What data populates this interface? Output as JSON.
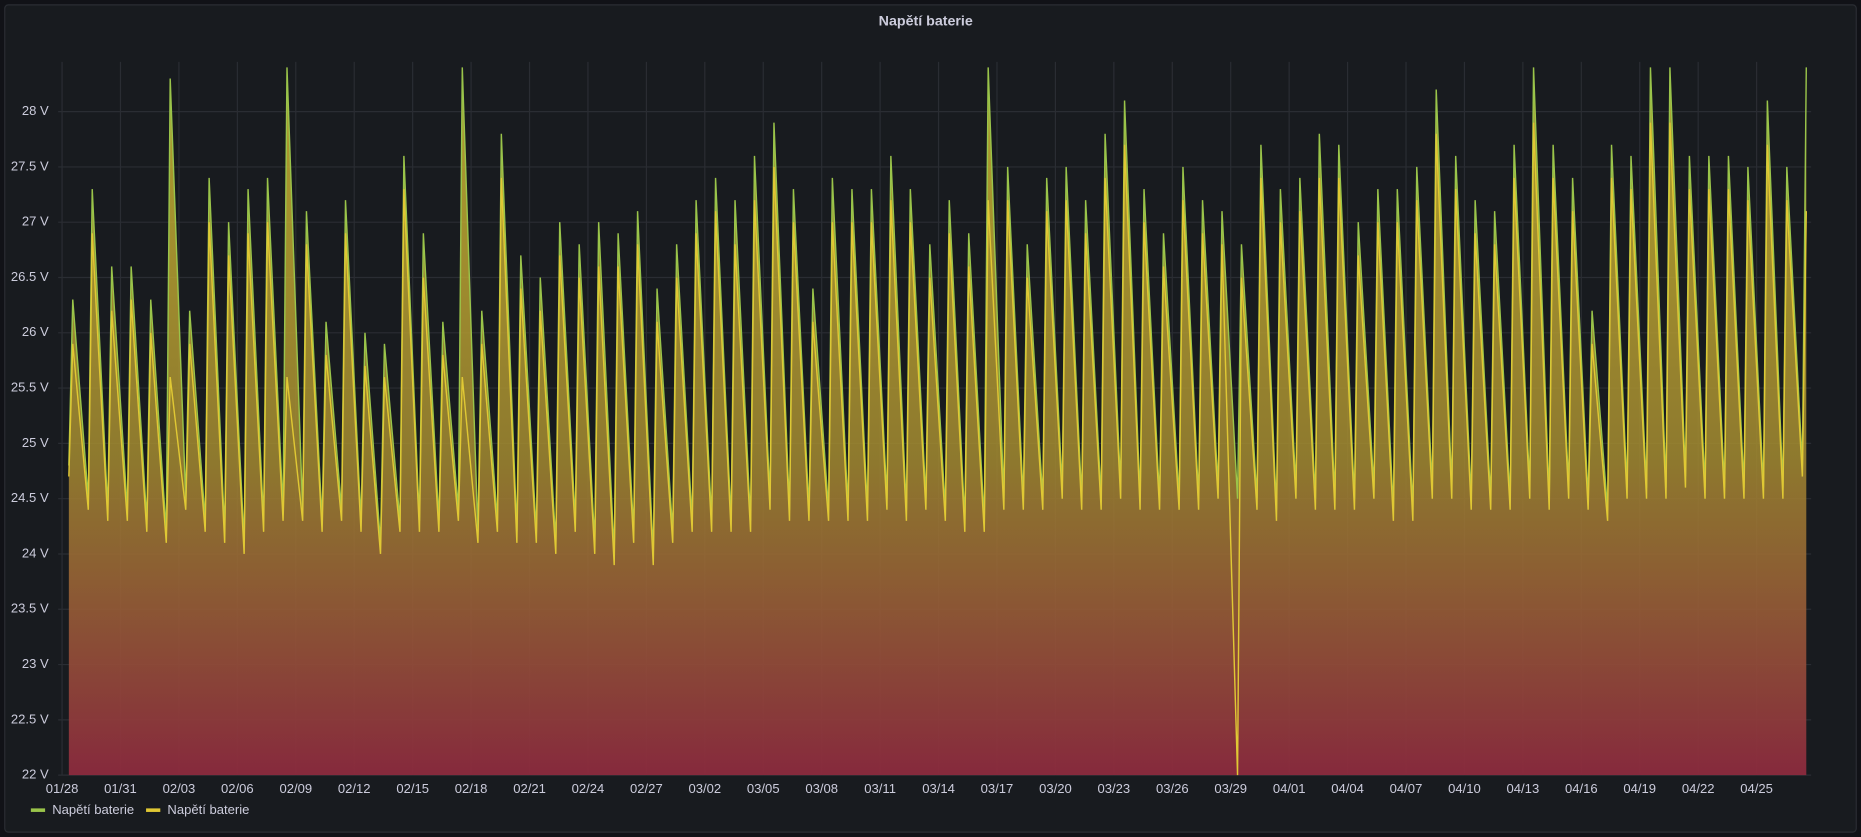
{
  "chart_data": {
    "type": "line",
    "title": "Napětí baterie",
    "x": [
      0.35,
      0.55,
      1.35,
      1.55,
      2.35,
      2.55,
      3.35,
      3.55,
      4.35,
      4.55,
      5.35,
      5.55,
      6.35,
      6.55,
      7.35,
      7.55,
      8.35,
      8.55,
      9.35,
      9.55,
      10.35,
      10.55,
      11.35,
      11.55,
      12.35,
      12.55,
      13.35,
      13.55,
      14.35,
      14.55,
      15.35,
      15.55,
      16.35,
      16.55,
      17.35,
      17.55,
      18.35,
      18.55,
      19.35,
      19.55,
      20.35,
      20.55,
      21.35,
      21.55,
      22.35,
      22.55,
      23.35,
      23.55,
      24.35,
      24.55,
      25.35,
      25.55,
      26.35,
      26.55,
      27.35,
      27.55,
      28.35,
      28.55,
      29.35,
      29.55,
      30.35,
      30.55,
      31.35,
      31.55,
      32.35,
      32.55,
      33.35,
      33.55,
      34.35,
      34.55,
      35.35,
      35.55,
      36.35,
      36.55,
      37.35,
      37.55,
      38.35,
      38.55,
      39.35,
      39.55,
      40.35,
      40.55,
      41.35,
      41.55,
      42.35,
      42.55,
      43.35,
      43.55,
      44.35,
      44.55,
      45.35,
      45.55,
      46.35,
      46.55,
      47.35,
      47.55,
      48.35,
      48.55,
      49.35,
      49.55,
      50.35,
      50.55,
      51.35,
      51.55,
      52.35,
      52.55,
      53.35,
      53.55,
      54.35,
      54.55,
      55.35,
      55.55,
      56.35,
      56.55,
      57.35,
      57.55,
      58.35,
      58.55,
      59.35,
      59.55,
      60.35,
      60.55,
      61.35,
      61.55,
      62.35,
      62.55,
      63.35,
      63.55,
      64.35,
      64.55,
      65.35,
      65.55,
      66.35,
      66.55,
      67.35,
      67.55,
      68.35,
      68.55,
      69.35,
      69.55,
      70.35,
      70.55,
      71.35,
      71.55,
      72.35,
      72.55,
      73.35,
      73.55,
      74.35,
      74.55,
      75.35,
      75.55,
      76.35,
      76.55,
      77.35,
      77.55,
      78.35,
      78.55,
      79.35,
      79.55,
      80.35,
      80.55,
      81.35,
      81.55,
      82.35,
      82.55,
      83.35,
      83.55,
      84.35,
      84.55,
      85.35,
      85.55,
      86.35,
      86.55,
      87.35,
      87.55,
      88.35,
      88.55,
      89.35,
      89.55
    ],
    "series": [
      {
        "name": "Napětí baterie",
        "color": "#9ac44a",
        "values": [
          24.8,
          26.3,
          24.5,
          27.3,
          24.4,
          26.6,
          24.4,
          26.6,
          24.3,
          26.3,
          24.2,
          28.3,
          24.5,
          26.2,
          24.3,
          27.4,
          24.2,
          27.0,
          24.1,
          27.3,
          24.3,
          27.4,
          24.4,
          28.4,
          24.4,
          27.1,
          24.3,
          26.1,
          24.4,
          27.2,
          24.3,
          26.0,
          24.1,
          25.9,
          24.3,
          27.6,
          24.3,
          26.9,
          24.3,
          26.1,
          24.4,
          28.4,
          24.2,
          26.2,
          24.3,
          27.8,
          24.2,
          26.7,
          24.2,
          26.5,
          24.1,
          27.0,
          24.3,
          26.8,
          24.1,
          27.0,
          24.0,
          26.9,
          24.2,
          27.1,
          24.0,
          26.4,
          24.2,
          26.8,
          24.3,
          27.2,
          24.3,
          27.4,
          24.3,
          27.2,
          24.3,
          27.6,
          24.5,
          27.9,
          24.4,
          27.3,
          24.4,
          26.4,
          24.4,
          27.4,
          24.4,
          27.3,
          24.4,
          27.3,
          24.5,
          27.6,
          24.4,
          27.3,
          24.5,
          26.8,
          24.4,
          27.2,
          24.3,
          26.9,
          24.3,
          28.4,
          24.5,
          27.5,
          24.5,
          26.8,
          24.5,
          27.4,
          24.6,
          27.5,
          24.5,
          27.2,
          24.5,
          27.8,
          24.6,
          28.1,
          24.5,
          27.3,
          24.5,
          26.9,
          24.5,
          27.5,
          24.5,
          27.2,
          24.6,
          27.1,
          24.5,
          26.8,
          24.5,
          27.7,
          24.4,
          27.3,
          24.6,
          27.4,
          24.5,
          27.8,
          24.5,
          27.7,
          24.5,
          27.0,
          24.6,
          27.3,
          24.4,
          27.3,
          24.4,
          27.5,
          24.6,
          28.2,
          24.6,
          27.6,
          24.5,
          27.2,
          24.5,
          27.1,
          24.5,
          27.7,
          24.6,
          28.4,
          24.5,
          27.7,
          24.6,
          27.4,
          24.5,
          26.2,
          24.4,
          27.7,
          24.6,
          27.6,
          24.6,
          28.4,
          24.6,
          28.4,
          24.7,
          27.6,
          24.6,
          27.6,
          24.6,
          27.6,
          24.6,
          27.5,
          24.6,
          28.1,
          24.6,
          27.5,
          24.8,
          28.4
        ]
      },
      {
        "name": "Napětí baterie",
        "color": "#e0c834",
        "values": [
          24.7,
          25.9,
          24.4,
          26.9,
          24.3,
          26.2,
          24.3,
          26.3,
          24.2,
          26.0,
          24.1,
          25.6,
          24.4,
          25.9,
          24.2,
          27.0,
          24.1,
          26.7,
          24.0,
          26.9,
          24.2,
          27.0,
          24.3,
          25.6,
          24.3,
          26.8,
          24.2,
          25.8,
          24.3,
          26.9,
          24.2,
          25.7,
          24.0,
          25.6,
          24.2,
          27.3,
          24.2,
          26.5,
          24.2,
          25.8,
          24.3,
          25.6,
          24.1,
          25.9,
          24.2,
          27.4,
          24.1,
          26.4,
          24.1,
          26.2,
          24.0,
          26.7,
          24.2,
          26.5,
          24.0,
          26.6,
          23.9,
          26.6,
          24.1,
          26.8,
          23.9,
          26.1,
          24.1,
          26.5,
          24.2,
          26.9,
          24.2,
          27.1,
          24.2,
          26.8,
          24.2,
          27.2,
          24.4,
          27.5,
          24.3,
          27.0,
          24.3,
          26.1,
          24.3,
          27.0,
          24.3,
          27.0,
          24.3,
          27.0,
          24.4,
          27.2,
          24.3,
          27.0,
          24.4,
          26.5,
          24.3,
          26.9,
          24.2,
          26.6,
          24.2,
          27.2,
          24.4,
          27.2,
          24.4,
          26.5,
          24.4,
          27.1,
          24.5,
          27.2,
          24.4,
          26.9,
          24.4,
          27.4,
          24.5,
          27.7,
          24.4,
          27.0,
          24.4,
          26.6,
          24.4,
          27.2,
          24.4,
          26.9,
          24.5,
          26.8,
          22.0,
          26.5,
          24.4,
          27.4,
          24.3,
          27.0,
          24.5,
          27.1,
          24.4,
          27.4,
          24.4,
          27.4,
          24.4,
          26.7,
          24.5,
          27.0,
          24.3,
          27.0,
          24.3,
          27.2,
          24.5,
          27.8,
          24.5,
          27.3,
          24.4,
          26.9,
          24.4,
          26.8,
          24.4,
          27.4,
          24.5,
          27.9,
          24.4,
          27.4,
          24.5,
          27.1,
          24.4,
          25.9,
          24.3,
          27.4,
          24.5,
          27.3,
          24.5,
          27.9,
          24.5,
          27.9,
          24.6,
          27.3,
          24.5,
          27.3,
          24.5,
          27.3,
          24.5,
          27.2,
          24.5,
          27.7,
          24.5,
          27.2,
          24.7,
          27.1
        ]
      }
    ],
    "xlim": [
      -0.2,
      89.8
    ],
    "xticks": [
      {
        "value": 0,
        "label": "01/28"
      },
      {
        "value": 3,
        "label": "01/31"
      },
      {
        "value": 6,
        "label": "02/03"
      },
      {
        "value": 9,
        "label": "02/06"
      },
      {
        "value": 12,
        "label": "02/09"
      },
      {
        "value": 15,
        "label": "02/12"
      },
      {
        "value": 18,
        "label": "02/15"
      },
      {
        "value": 21,
        "label": "02/18"
      },
      {
        "value": 24,
        "label": "02/21"
      },
      {
        "value": 27,
        "label": "02/24"
      },
      {
        "value": 30,
        "label": "02/27"
      },
      {
        "value": 33,
        "label": "03/02"
      },
      {
        "value": 36,
        "label": "03/05"
      },
      {
        "value": 39,
        "label": "03/08"
      },
      {
        "value": 42,
        "label": "03/11"
      },
      {
        "value": 45,
        "label": "03/14"
      },
      {
        "value": 48,
        "label": "03/17"
      },
      {
        "value": 51,
        "label": "03/20"
      },
      {
        "value": 54,
        "label": "03/23"
      },
      {
        "value": 57,
        "label": "03/26"
      },
      {
        "value": 60,
        "label": "03/29"
      },
      {
        "value": 63,
        "label": "04/01"
      },
      {
        "value": 66,
        "label": "04/04"
      },
      {
        "value": 69,
        "label": "04/07"
      },
      {
        "value": 72,
        "label": "04/10"
      },
      {
        "value": 75,
        "label": "04/13"
      },
      {
        "value": 78,
        "label": "04/16"
      },
      {
        "value": 81,
        "label": "04/19"
      },
      {
        "value": 84,
        "label": "04/22"
      },
      {
        "value": 87,
        "label": "04/25"
      }
    ],
    "ylim": [
      22,
      28.45
    ],
    "yticks": [
      {
        "value": 22,
        "label": "22 V"
      },
      {
        "value": 22.5,
        "label": "22.5 V"
      },
      {
        "value": 23,
        "label": "23 V"
      },
      {
        "value": 23.5,
        "label": "23.5 V"
      },
      {
        "value": 24,
        "label": "24 V"
      },
      {
        "value": 24.5,
        "label": "24.5 V"
      },
      {
        "value": 25,
        "label": "25 V"
      },
      {
        "value": 25.5,
        "label": "25.5 V"
      },
      {
        "value": 26,
        "label": "26 V"
      },
      {
        "value": 26.5,
        "label": "26.5 V"
      },
      {
        "value": 27,
        "label": "27 V"
      },
      {
        "value": 27.5,
        "label": "27.5 V"
      },
      {
        "value": 28,
        "label": "28 V"
      }
    ],
    "grid": true
  }
}
